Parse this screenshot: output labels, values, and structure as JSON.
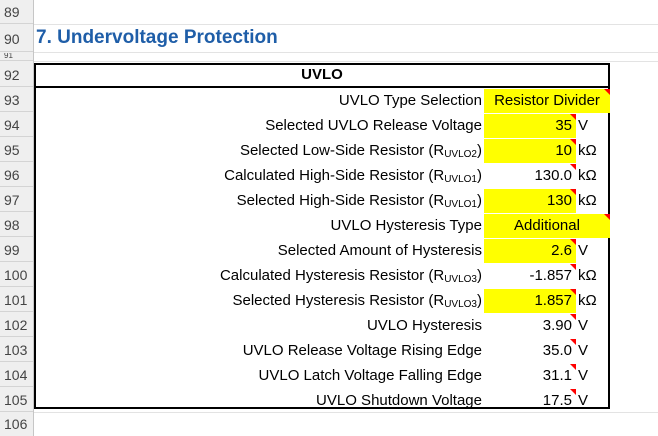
{
  "row_numbers": [
    "89",
    "90",
    "91",
    "92",
    "93",
    "94",
    "95",
    "96",
    "97",
    "98",
    "99",
    "100",
    "101",
    "102",
    "103",
    "104",
    "105",
    "106"
  ],
  "section_title": "7. Undervoltage Protection",
  "table_header": "UVLO",
  "rows": [
    {
      "label": "UVLO Type Selection",
      "label_main": "UVLO Type Selection",
      "label_sub": "",
      "label_end": "",
      "value": "Resistor Divider",
      "unit": "",
      "yellow": true
    },
    {
      "label": "Selected UVLO Release Voltage",
      "label_main": "Selected UVLO Release Voltage",
      "label_sub": "",
      "label_end": "",
      "value": "35",
      "unit": "V",
      "yellow": true
    },
    {
      "label": "Selected Low-Side Resistor (RUVLO2)",
      "label_main": "Selected Low-Side Resistor (R",
      "label_sub": "UVLO2",
      "label_end": ")",
      "value": "10",
      "unit": "kΩ",
      "yellow": true
    },
    {
      "label": "Calculated High-Side Resistor (RUVLO1)",
      "label_main": "Calculated High-Side Resistor (R",
      "label_sub": "UVLO1",
      "label_end": ")",
      "value": "130.0",
      "unit": "kΩ",
      "yellow": false
    },
    {
      "label": "Selected High-Side Resistor (RUVLO1)",
      "label_main": "Selected High-Side Resistor (R",
      "label_sub": "UVLO1",
      "label_end": ")",
      "value": "130",
      "unit": "kΩ",
      "yellow": true
    },
    {
      "label": "UVLO Hysteresis Type",
      "label_main": "UVLO Hysteresis Type",
      "label_sub": "",
      "label_end": "",
      "value": "Additional",
      "unit": "",
      "yellow": true
    },
    {
      "label": "Selected Amount of Hysteresis",
      "label_main": "Selected Amount of Hysteresis",
      "label_sub": "",
      "label_end": "",
      "value": "2.6",
      "unit": "V",
      "yellow": true
    },
    {
      "label": "Calculated Hysteresis Resistor (RUVLO3)",
      "label_main": "Calculated Hysteresis Resistor (R",
      "label_sub": "UVLO3",
      "label_end": ")",
      "value": "-1.857",
      "unit": "kΩ",
      "yellow": false
    },
    {
      "label": "Selected Hysteresis Resistor (RUVLO3)",
      "label_main": "Selected Hysteresis Resistor (R",
      "label_sub": "UVLO3",
      "label_end": ")",
      "value": "1.857",
      "unit": "kΩ",
      "yellow": true
    },
    {
      "label": "UVLO Hysteresis",
      "label_main": "UVLO Hysteresis",
      "label_sub": "",
      "label_end": "",
      "value": "3.90",
      "unit": "V",
      "yellow": false
    },
    {
      "label": "UVLO Release Voltage Rising Edge",
      "label_main": "UVLO Release Voltage Rising Edge",
      "label_sub": "",
      "label_end": "",
      "value": "35.0",
      "unit": "V",
      "yellow": false
    },
    {
      "label": "UVLO Latch Voltage Falling Edge",
      "label_main": "UVLO Latch Voltage Falling Edge",
      "label_sub": "",
      "label_end": "",
      "value": "31.1",
      "unit": "V",
      "yellow": false
    },
    {
      "label": "UVLO Shutdown Voltage",
      "label_main": "UVLO Shutdown Voltage",
      "label_sub": "",
      "label_end": "",
      "value": "17.5",
      "unit": "V",
      "yellow": false
    }
  ],
  "colors": {
    "title": "#1f5ea8",
    "input_fill": "#ffff00",
    "comment_flag": "#ff0000"
  }
}
